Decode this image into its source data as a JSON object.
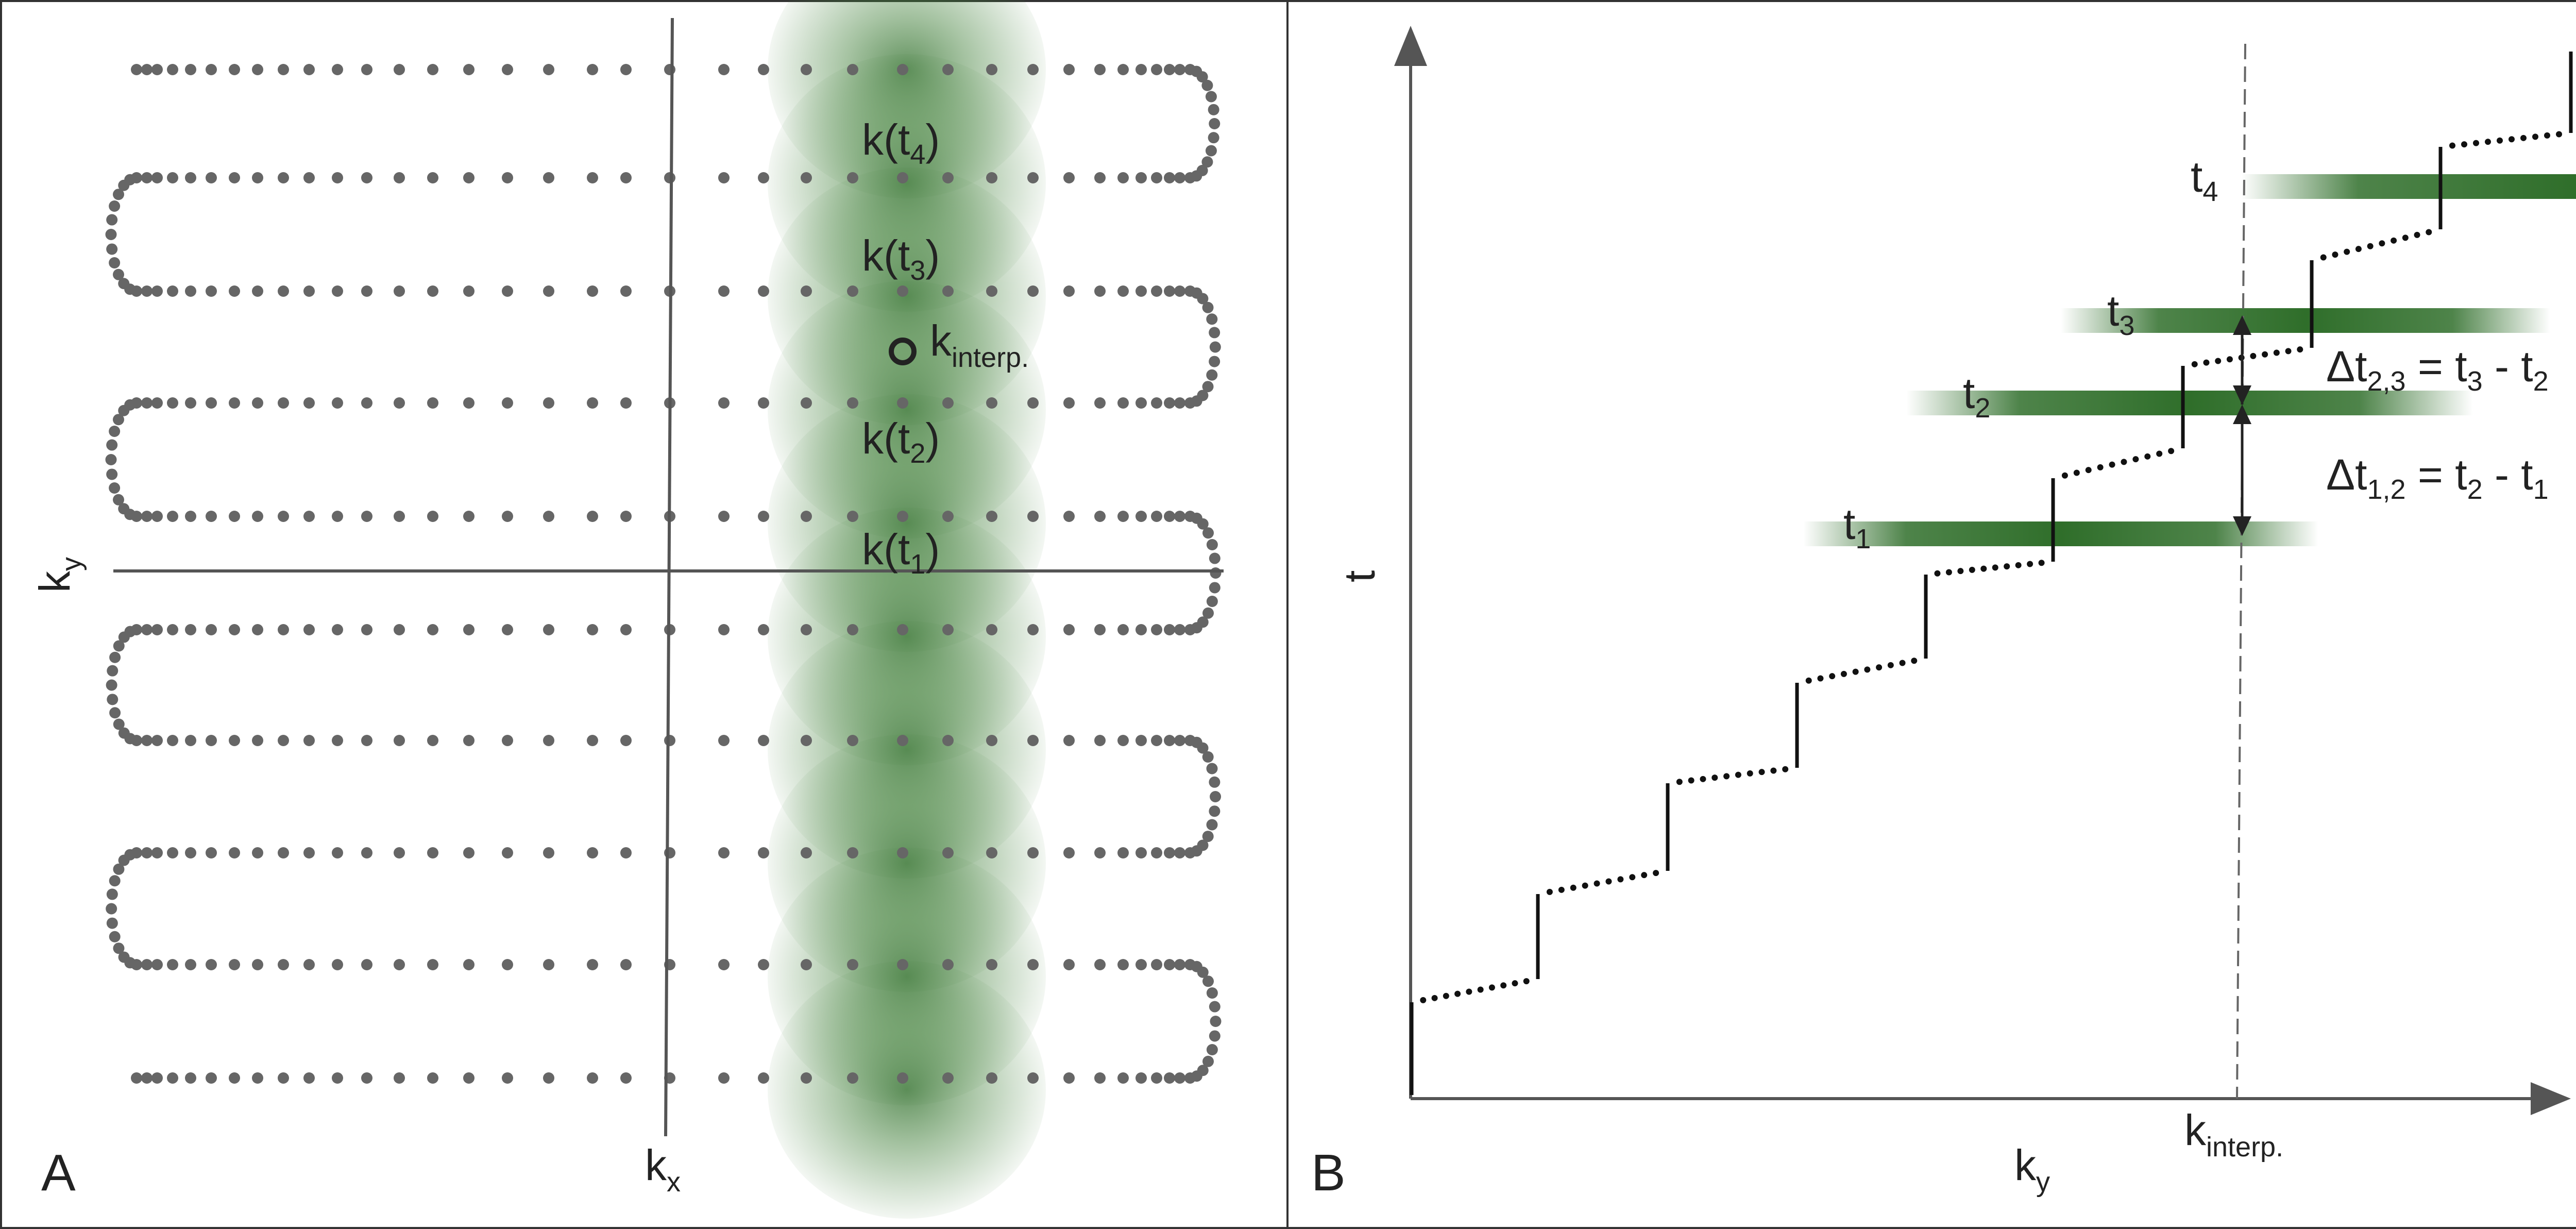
{
  "panel_a": {
    "panel_label": "A",
    "x_axis_label": "k",
    "x_axis_sub": "x",
    "y_axis_label": "k",
    "y_axis_sub": "y",
    "samples": [
      {
        "text": "k(t",
        "sub": "4",
        "close": ")"
      },
      {
        "text": "k(t",
        "sub": "3",
        "close": ")"
      },
      {
        "text": "k(t",
        "sub": "2",
        "close": ")"
      },
      {
        "text": "k(t",
        "sub": "1",
        "close": ")"
      }
    ],
    "interp_label": "k",
    "interp_sub": "interp."
  },
  "panel_b": {
    "panel_label": "B",
    "x_axis_label": "k",
    "x_axis_sub": "y",
    "y_axis_label": "t",
    "interp_label": "k",
    "interp_sub": "interp.",
    "time_labels": [
      {
        "text": "t",
        "sub": "4"
      },
      {
        "text": "t",
        "sub": "3"
      },
      {
        "text": "t",
        "sub": "2"
      },
      {
        "text": "t",
        "sub": "1"
      }
    ],
    "deltas": [
      {
        "pre": "Δt",
        "sub": "2,3",
        "eq": " = t",
        "sub_a": "3",
        "minus": " - t",
        "sub_b": "2"
      },
      {
        "pre": "Δt",
        "sub": "1,2",
        "eq": " = t",
        "sub_a": "2",
        "minus": " - t",
        "sub_b": "1"
      }
    ]
  },
  "colors": {
    "trajectory": "#666666",
    "window_green": "#2f6e2a",
    "stair": "#111111"
  }
}
